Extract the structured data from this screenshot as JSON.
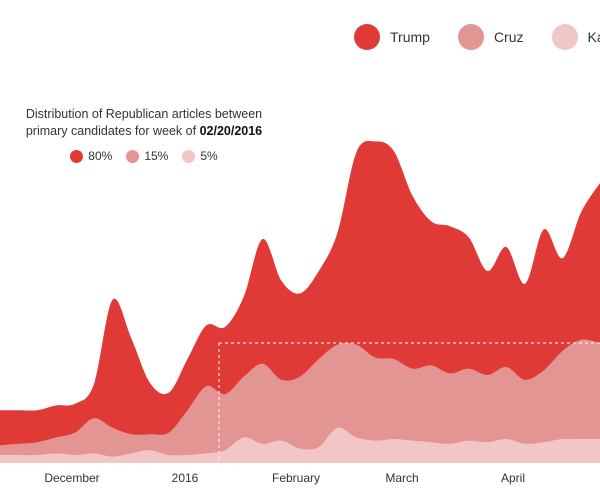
{
  "chart_data": {
    "type": "area",
    "stacked": true,
    "x_ticks": [
      "December",
      "2016",
      "February",
      "March",
      "April"
    ],
    "series": [
      {
        "name": "Trump",
        "color": "#e03a37",
        "values": [
          22,
          21,
          20,
          20,
          18,
          21,
          80,
          60,
          32,
          25,
          32,
          38,
          42,
          50,
          78,
          62,
          52,
          55,
          70,
          120,
          135,
          130,
          108,
          90,
          92,
          82,
          65,
          75,
          60,
          88,
          58,
          80,
          100
        ]
      },
      {
        "name": "Cruz",
        "color": "#e39593",
        "values": [
          6,
          7,
          8,
          10,
          14,
          22,
          18,
          12,
          10,
          14,
          28,
          42,
          35,
          38,
          50,
          38,
          45,
          55,
          52,
          58,
          52,
          50,
          45,
          48,
          44,
          45,
          42,
          45,
          40,
          45,
          55,
          62,
          60
        ]
      },
      {
        "name": "Kasich",
        "color": "#f2c6c4",
        "values": [
          5,
          5,
          5,
          6,
          5,
          6,
          4,
          6,
          8,
          5,
          5,
          6,
          8,
          16,
          12,
          14,
          9,
          10,
          22,
          16,
          14,
          15,
          14,
          13,
          12,
          14,
          13,
          15,
          12,
          13,
          15,
          15,
          15
        ]
      }
    ],
    "highlight": {
      "description": "Distribution of Republican articles between primary candidates for week of",
      "date": "02/20/2016",
      "shares": [
        {
          "label": "80%",
          "color": "#e03a37"
        },
        {
          "label": "15%",
          "color": "#e39593"
        },
        {
          "label": "5%",
          "color": "#f2c6c4"
        }
      ]
    }
  },
  "legend": [
    {
      "label": "Trump",
      "color": "#e03a37"
    },
    {
      "label": "Cruz",
      "color": "#e39593"
    },
    {
      "label": "Kasich",
      "color": "#f2c6c4"
    }
  ]
}
